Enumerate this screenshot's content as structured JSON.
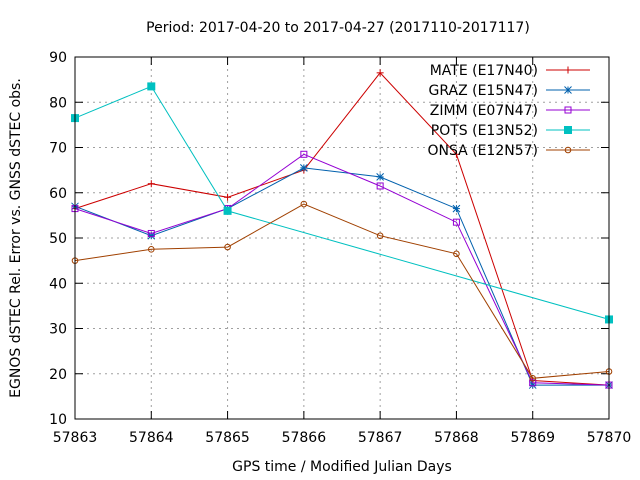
{
  "chart_data": {
    "type": "line",
    "title": "Period: 2017-04-20 to 2017-04-27 (2017110-2017117)",
    "xlabel": "GPS time / Modified Julian Days",
    "ylabel": "EGNOS dSTEC Rel. Error vs. GNSS dSTEC obs.",
    "xlim": [
      57863,
      57870
    ],
    "ylim": [
      10,
      90
    ],
    "xticks": [
      "57863",
      "57864",
      "57865",
      "57866",
      "57867",
      "57868",
      "57869",
      "57870"
    ],
    "yticks": [
      "10",
      "20",
      "30",
      "40",
      "50",
      "60",
      "70",
      "80",
      "90"
    ],
    "grid": true,
    "legend_position": "top-right",
    "series": [
      {
        "name": "MATE (E17N40)",
        "color": "#cc0000",
        "marker": "plus",
        "x": [
          57863,
          57864,
          57865,
          57866,
          57867,
          57868,
          57869,
          57870
        ],
        "y": [
          56.5,
          62.0,
          59.0,
          65.0,
          86.5,
          68.5,
          18.5,
          17.5
        ]
      },
      {
        "name": "GRAZ (E15N47)",
        "color": "#0060ad",
        "marker": "star",
        "x": [
          57863,
          57864,
          57865,
          57866,
          57867,
          57868,
          57869,
          57870
        ],
        "y": [
          57.0,
          50.5,
          56.5,
          65.5,
          63.5,
          56.5,
          17.5,
          17.5
        ]
      },
      {
        "name": "ZIMM (E07N47)",
        "color": "#9400d3",
        "marker": "open-square",
        "x": [
          57863,
          57864,
          57865,
          57866,
          57867,
          57868,
          57869,
          57870
        ],
        "y": [
          56.5,
          51.0,
          56.5,
          68.5,
          61.5,
          53.5,
          18.0,
          17.5
        ]
      },
      {
        "name": "POTS (E13N52)",
        "color": "#00c0c0",
        "marker": "filled-square",
        "x": [
          57863,
          57864,
          57865,
          57870
        ],
        "y": [
          76.5,
          83.5,
          56.0,
          32.0
        ]
      },
      {
        "name": "ONSA (E12N57)",
        "color": "#a04000",
        "marker": "open-circle",
        "x": [
          57863,
          57864,
          57865,
          57866,
          57867,
          57868,
          57869,
          57870
        ],
        "y": [
          45.0,
          47.5,
          48.0,
          57.5,
          50.5,
          46.5,
          19.0,
          20.5
        ]
      }
    ]
  }
}
